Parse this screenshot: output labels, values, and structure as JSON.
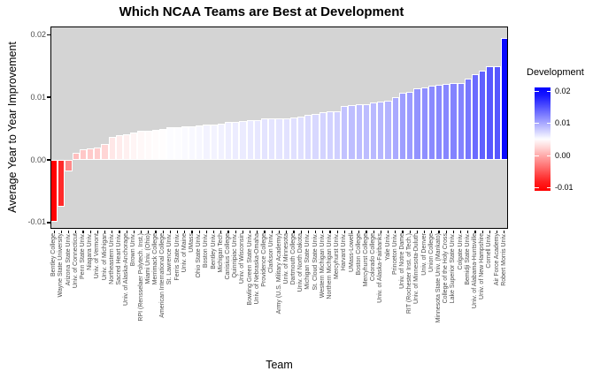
{
  "title": "Which NCAA Teams are Best at Development",
  "axes": {
    "x_title": "Team",
    "y_title": "Average Year to Year Improvement",
    "y_tick_values": [
      0.02,
      0.01,
      0.0,
      -0.01
    ],
    "y_tick_labels": [
      "0.02",
      "0.01",
      "0.00",
      "-0.01"
    ]
  },
  "legend": {
    "title": "Development",
    "tick_values": [
      0.02,
      0.01,
      0.0,
      -0.01
    ],
    "tick_labels": [
      "0.02",
      "0.01",
      "0.00",
      "-0.01"
    ]
  },
  "chart_data": {
    "type": "bar",
    "title": "Which NCAA Teams are Best at Development",
    "xlabel": "Team",
    "ylabel": "Average Year to Year Improvement",
    "ylim": [
      -0.011,
      0.0213
    ],
    "grid": false,
    "legend_position": "right",
    "panel_background": "#d4d4d4",
    "bar_stroke": "#ffffff",
    "color_scale": {
      "low": "#ff0000",
      "mid": "#ffffff",
      "high": "#0000ff",
      "midpoint": 0.005,
      "limits": [
        -0.01,
        0.02
      ]
    },
    "categories": [
      "Bentley College",
      "Wayne State University",
      "Arizona State Univ.",
      "Univ. of Connecticut",
      "Penn State Univ.",
      "Niagara Univ.",
      "Univ. of Vermont",
      "Univ. of Michigan",
      "Northeastern Univ.",
      "Sacred Heart Univ.",
      "Univ. of Alaska-Anchorage",
      "Brown Univ.",
      "RPI (Rensselaer Polytech. Inst.)",
      "Miami Univ. (Ohio)",
      "Merrimack College",
      "American International College",
      "St. Lawrence Univ.",
      "Ferris State Univ.",
      "Univ. of Maine",
      "UMass",
      "Ohio State Univ.",
      "Boston Univ.",
      "Bentley Univ.",
      "Michigan Tech",
      "Canisius College",
      "Quinnipiac Univ.",
      "Univ. of Wisconsin",
      "Bowling Green State Univ.",
      "Univ. of Nebraska-Omaha",
      "Providence College",
      "Clarkson Univ.",
      "Army (U.S. Military Academy)",
      "Univ. of Minnesota",
      "Dartmouth College",
      "Univ. of North Dakota",
      "Michigan State Univ.",
      "St. Cloud State Univ.",
      "Western Michigan Univ.",
      "Northern Michigan Univ.",
      "Mercyhurst Univ.",
      "Harvard Univ.",
      "UMass-Lowell",
      "Boston College",
      "Mercyhurst College",
      "Colorado College",
      "Univ. of Alaska-Fairbanks",
      "Yale Univ.",
      "Princeton Univ.",
      "Univ. of Notre Dame",
      "RIT (Rochester Inst. of Tech.)",
      "Univ. of Minnesota-Duluth",
      "Univ. of Denver",
      "Union College",
      "Minnesota State Univ. (Mankato)",
      "College of the Holy Cross",
      "Lake Superior State Univ.",
      "Colgate Univ.",
      "Bemidji State Univ.",
      "Univ. of Alabama-Huntsville",
      "Univ. of New Hampshire",
      "Cornell Univ.",
      "Air Force Academy",
      "Robert Morris Univ."
    ],
    "values": [
      -0.0099,
      -0.0075,
      -0.0019,
      0.0012,
      0.0017,
      0.0019,
      0.002,
      0.0025,
      0.0036,
      0.0039,
      0.0041,
      0.0044,
      0.0046,
      0.0047,
      0.0048,
      0.0049,
      0.0052,
      0.0052,
      0.0053,
      0.0054,
      0.0055,
      0.0057,
      0.0057,
      0.0058,
      0.006,
      0.0061,
      0.0062,
      0.0063,
      0.0064,
      0.0066,
      0.0066,
      0.0066,
      0.0067,
      0.0068,
      0.0069,
      0.0072,
      0.0073,
      0.0076,
      0.0077,
      0.0078,
      0.0086,
      0.0088,
      0.0089,
      0.0089,
      0.0091,
      0.0093,
      0.0095,
      0.01,
      0.0107,
      0.0109,
      0.0114,
      0.0116,
      0.0119,
      0.012,
      0.0121,
      0.0123,
      0.0123,
      0.013,
      0.0137,
      0.0143,
      0.0149,
      0.0149,
      0.0194
    ]
  }
}
